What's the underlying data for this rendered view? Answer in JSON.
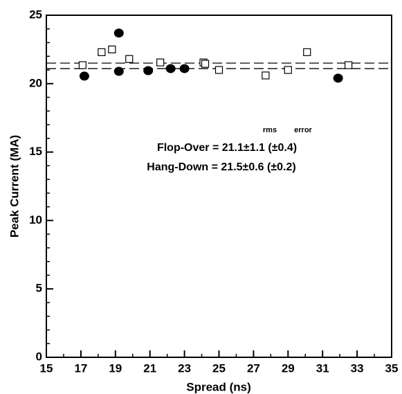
{
  "chart_data": {
    "type": "scatter",
    "x_label": "Spread (ns)",
    "y_label": "Peak Current (MA)",
    "xlim": [
      15,
      35
    ],
    "ylim": [
      0,
      25
    ],
    "xticks": [
      15,
      17,
      19,
      21,
      23,
      25,
      27,
      29,
      31,
      33,
      35
    ],
    "yticks": [
      0,
      5,
      10,
      15,
      20,
      25
    ],
    "xminorticks": [
      16,
      18,
      20,
      22,
      24,
      26,
      28,
      30,
      32,
      34
    ],
    "yminorticks": [
      1,
      2,
      3,
      4,
      6,
      7,
      8,
      9,
      11,
      12,
      13,
      14,
      16,
      17,
      18,
      19,
      21,
      22,
      23,
      24
    ],
    "series": [
      {
        "marker": "filled-circle",
        "color": "#000000",
        "x": [
          17.2,
          19.2,
          19.2,
          20.9,
          22.2,
          23.0,
          31.9
        ],
        "values": [
          20.55,
          23.7,
          20.9,
          20.95,
          21.1,
          21.1,
          20.4
        ]
      },
      {
        "marker": "open-square",
        "color": "#000000",
        "x": [
          17.1,
          18.2,
          18.8,
          19.8,
          21.6,
          24.1,
          24.2,
          25.0,
          27.7,
          29.0,
          30.1,
          32.5
        ],
        "values": [
          21.35,
          22.3,
          22.5,
          21.8,
          21.55,
          21.55,
          21.45,
          21.0,
          20.6,
          21.0,
          22.3,
          21.35
        ]
      }
    ],
    "hlines": [
      21.1,
      21.5
    ],
    "annotations": {
      "rms": "rms",
      "error": "error",
      "flop_over": "Flop-Over = 21.1±1.1 (±0.4)",
      "hang_down": "Hang-Down = 21.5±0.6 (±0.2)"
    }
  }
}
